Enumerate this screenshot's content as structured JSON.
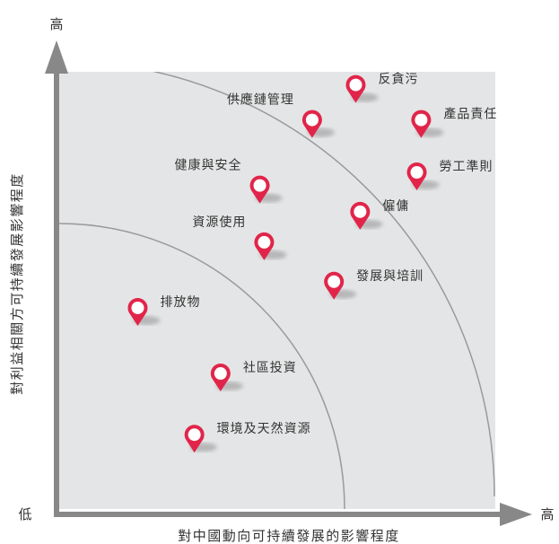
{
  "chart_data": {
    "type": "scatter",
    "xlabel": "對中國動向可持續發展的影響程度",
    "ylabel": "對利益相關方可持續發展影響程度",
    "x_low": "低",
    "x_high": "高",
    "y_high": "高",
    "xlim": [
      0,
      100
    ],
    "ylim": [
      0,
      100
    ],
    "grid": false,
    "background_color": "#e4e5e6",
    "marker_color": "#e1254a",
    "axis_color": "#888888",
    "points": [
      {
        "label": "反貪污",
        "x": 68,
        "y": 97
      },
      {
        "label": "產品責任",
        "x": 83,
        "y": 89
      },
      {
        "label": "供應鏈管理",
        "x": 58,
        "y": 89
      },
      {
        "label": "勞工準則",
        "x": 82,
        "y": 77
      },
      {
        "label": "健康與安全",
        "x": 46,
        "y": 74
      },
      {
        "label": "僱傭",
        "x": 69,
        "y": 68
      },
      {
        "label": "資源使用",
        "x": 47,
        "y": 61
      },
      {
        "label": "發展與培訓",
        "x": 63,
        "y": 52
      },
      {
        "label": "排放物",
        "x": 18,
        "y": 46
      },
      {
        "label": "社區投資",
        "x": 37,
        "y": 31
      },
      {
        "label": "環境及天然資源",
        "x": 31,
        "y": 17
      }
    ]
  }
}
